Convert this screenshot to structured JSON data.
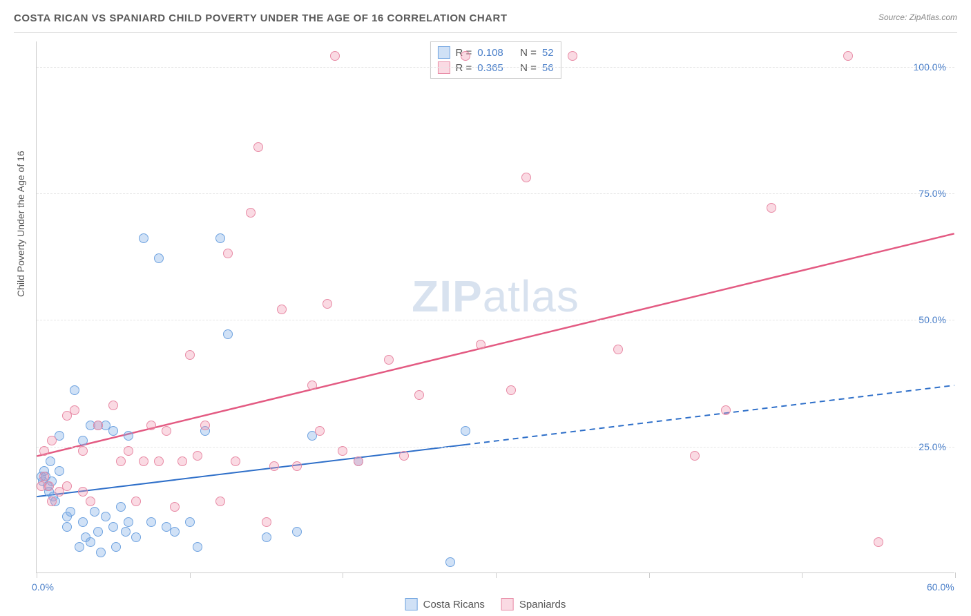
{
  "title": "COSTA RICAN VS SPANIARD CHILD POVERTY UNDER THE AGE OF 16 CORRELATION CHART",
  "source_label": "Source: ",
  "source_name": "ZipAtlas.com",
  "watermark": {
    "bold": "ZIP",
    "light": "atlas"
  },
  "y_axis_label": "Child Poverty Under the Age of 16",
  "chart": {
    "type": "scatter",
    "background_color": "#ffffff",
    "grid_color": "#e5e5e5",
    "axis_color": "#cccccc",
    "xlim": [
      0,
      60
    ],
    "ylim": [
      0,
      105
    ],
    "x_ticks": [
      0,
      10,
      20,
      30,
      40,
      50,
      60
    ],
    "x_tick_labels": {
      "0": "0.0%",
      "60": "60.0%"
    },
    "y_ticks": [
      25,
      50,
      75,
      100
    ],
    "y_tick_labels": {
      "25": "25.0%",
      "50": "50.0%",
      "75": "75.0%",
      "100": "100.0%"
    },
    "marker_radius": 7,
    "marker_border_width": 1.2,
    "series": [
      {
        "name": "Costa Ricans",
        "fill_color": "rgba(120,170,230,0.35)",
        "border_color": "#6fa3e0",
        "R": "0.108",
        "N": "52",
        "trend": {
          "color": "#2e6fc9",
          "width": 2,
          "y0": 15,
          "y60": 37,
          "solid_until_x": 28
        },
        "points": [
          [
            0.3,
            19
          ],
          [
            0.4,
            18
          ],
          [
            0.5,
            20
          ],
          [
            0.6,
            19
          ],
          [
            0.7,
            17
          ],
          [
            0.8,
            16
          ],
          [
            0.9,
            22
          ],
          [
            1.0,
            18
          ],
          [
            1.1,
            15
          ],
          [
            1.2,
            14
          ],
          [
            1.5,
            20
          ],
          [
            1.5,
            27
          ],
          [
            2.0,
            11
          ],
          [
            2.0,
            9
          ],
          [
            2.2,
            12
          ],
          [
            2.5,
            36
          ],
          [
            2.8,
            5
          ],
          [
            3.0,
            10
          ],
          [
            3.0,
            26
          ],
          [
            3.2,
            7
          ],
          [
            3.5,
            29
          ],
          [
            3.5,
            6
          ],
          [
            3.8,
            12
          ],
          [
            4.0,
            29
          ],
          [
            4.0,
            8
          ],
          [
            4.2,
            4
          ],
          [
            4.5,
            29
          ],
          [
            4.5,
            11
          ],
          [
            5.0,
            9
          ],
          [
            5.0,
            28
          ],
          [
            5.2,
            5
          ],
          [
            5.5,
            13
          ],
          [
            5.8,
            8
          ],
          [
            6.0,
            10
          ],
          [
            6.0,
            27
          ],
          [
            6.5,
            7
          ],
          [
            7.0,
            66
          ],
          [
            7.5,
            10
          ],
          [
            8.0,
            62
          ],
          [
            8.5,
            9
          ],
          [
            9.0,
            8
          ],
          [
            10.0,
            10
          ],
          [
            10.5,
            5
          ],
          [
            11.0,
            28
          ],
          [
            12.0,
            66
          ],
          [
            12.5,
            47
          ],
          [
            15.0,
            7
          ],
          [
            17.0,
            8
          ],
          [
            18.0,
            27
          ],
          [
            21.0,
            22
          ],
          [
            27.0,
            2
          ],
          [
            28.0,
            28
          ]
        ]
      },
      {
        "name": "Spaniards",
        "fill_color": "rgba(240,150,175,0.35)",
        "border_color": "#e88aa5",
        "R": "0.365",
        "N": "56",
        "trend": {
          "color": "#e35a82",
          "width": 2.5,
          "y0": 23,
          "y60": 67,
          "solid_until_x": 60
        },
        "points": [
          [
            0.3,
            17
          ],
          [
            0.5,
            19
          ],
          [
            0.5,
            24
          ],
          [
            0.8,
            17
          ],
          [
            1.0,
            26
          ],
          [
            1.0,
            14
          ],
          [
            1.5,
            16
          ],
          [
            2.0,
            31
          ],
          [
            2.0,
            17
          ],
          [
            2.5,
            32
          ],
          [
            3.0,
            16
          ],
          [
            3.0,
            24
          ],
          [
            3.5,
            14
          ],
          [
            4.0,
            29
          ],
          [
            5.0,
            33
          ],
          [
            5.5,
            22
          ],
          [
            6.0,
            24
          ],
          [
            6.5,
            14
          ],
          [
            7.0,
            22
          ],
          [
            7.5,
            29
          ],
          [
            8.0,
            22
          ],
          [
            8.5,
            28
          ],
          [
            9.0,
            13
          ],
          [
            9.5,
            22
          ],
          [
            10.0,
            43
          ],
          [
            10.5,
            23
          ],
          [
            11.0,
            29
          ],
          [
            12.0,
            14
          ],
          [
            12.5,
            63
          ],
          [
            13.0,
            22
          ],
          [
            14.0,
            71
          ],
          [
            14.5,
            84
          ],
          [
            15.0,
            10
          ],
          [
            15.5,
            21
          ],
          [
            16.0,
            52
          ],
          [
            17.0,
            21
          ],
          [
            18.0,
            37
          ],
          [
            18.5,
            28
          ],
          [
            19.0,
            53
          ],
          [
            19.5,
            102
          ],
          [
            20.0,
            24
          ],
          [
            21.0,
            22
          ],
          [
            23.0,
            42
          ],
          [
            24.0,
            23
          ],
          [
            25.0,
            35
          ],
          [
            28.0,
            102
          ],
          [
            29.0,
            45
          ],
          [
            31.0,
            36
          ],
          [
            32.0,
            78
          ],
          [
            35.0,
            102
          ],
          [
            38.0,
            44
          ],
          [
            43.0,
            23
          ],
          [
            45.0,
            32
          ],
          [
            48.0,
            72
          ],
          [
            53.0,
            102
          ],
          [
            55.0,
            6
          ]
        ]
      }
    ]
  },
  "stats_legend": {
    "R_label": "R  =",
    "N_label": "N  ="
  },
  "colors": {
    "tick_label": "#4a7fc9",
    "text": "#555555"
  }
}
